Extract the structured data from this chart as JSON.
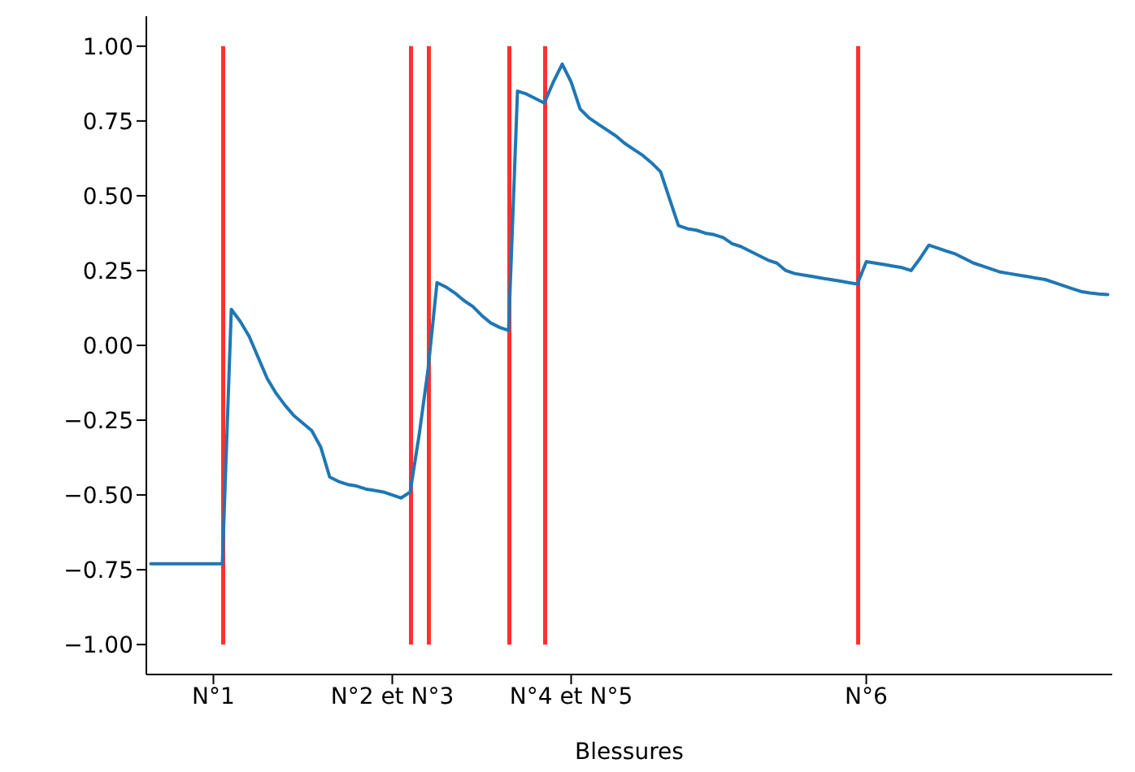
{
  "chart_data": {
    "type": "line",
    "xlabel": "Blessures",
    "categories": [
      null,
      null,
      null,
      null,
      null,
      null,
      null,
      "N°1",
      null,
      null,
      null,
      null,
      null,
      null,
      null,
      null,
      null,
      null,
      null,
      null,
      null,
      null,
      null,
      null,
      null,
      null,
      null,
      "N°2 et N°3",
      null,
      null,
      null,
      null,
      null,
      null,
      null,
      null,
      null,
      null,
      null,
      null,
      null,
      null,
      null,
      null,
      null,
      null,
      null,
      "N°4 et N°5",
      null,
      null,
      null,
      null,
      null,
      null,
      null,
      null,
      null,
      null,
      null,
      null,
      null,
      null,
      null,
      null,
      null,
      null,
      null,
      null,
      null,
      null,
      null,
      null,
      null,
      null,
      null,
      null,
      null,
      null,
      null,
      null,
      "N°6",
      null,
      null,
      null,
      null,
      null,
      null,
      null,
      null,
      null,
      null,
      null,
      null,
      null,
      null,
      null,
      null,
      null,
      null,
      null,
      null,
      null,
      null,
      null,
      null,
      null,
      null,
      null
    ],
    "series": [
      {
        "color": "#1f77b4",
        "values": [
          -0.73,
          -0.73,
          -0.73,
          -0.73,
          -0.73,
          -0.73,
          -0.73,
          -0.73,
          -0.73,
          0.12,
          0.08,
          0.03,
          -0.04,
          -0.11,
          -0.16,
          -0.2,
          -0.235,
          -0.26,
          -0.285,
          -0.34,
          -0.44,
          -0.455,
          -0.465,
          -0.47,
          -0.48,
          -0.485,
          -0.49,
          -0.5,
          -0.51,
          -0.49,
          -0.3,
          -0.08,
          0.21,
          0.195,
          0.175,
          0.15,
          0.13,
          0.1,
          0.075,
          0.06,
          0.05,
          0.85,
          0.84,
          0.825,
          0.81,
          0.88,
          0.94,
          0.88,
          0.79,
          0.76,
          0.74,
          0.72,
          0.7,
          0.675,
          0.655,
          0.635,
          0.61,
          0.58,
          0.49,
          0.4,
          0.39,
          0.385,
          0.375,
          0.37,
          0.36,
          0.34,
          0.33,
          0.315,
          0.3,
          0.285,
          0.275,
          0.25,
          0.24,
          0.235,
          0.23,
          0.225,
          0.22,
          0.215,
          0.21,
          0.205,
          0.28,
          0.275,
          0.27,
          0.265,
          0.26,
          0.25,
          0.29,
          0.335,
          0.325,
          0.315,
          0.305,
          0.29,
          0.275,
          0.265,
          0.255,
          0.245,
          0.24,
          0.235,
          0.23,
          0.225,
          0.22,
          0.21,
          0.2,
          0.19,
          0.18,
          0.175,
          0.172,
          0.17
        ]
      },
      {
        "type": "bar",
        "color": "#ff3030",
        "values": [
          null,
          null,
          null,
          null,
          null,
          null,
          null,
          null,
          2,
          null,
          null,
          null,
          null,
          null,
          null,
          null,
          null,
          null,
          null,
          null,
          null,
          null,
          null,
          null,
          null,
          null,
          null,
          null,
          null,
          2,
          null,
          2,
          null,
          null,
          null,
          null,
          null,
          null,
          null,
          null,
          2,
          null,
          null,
          null,
          2,
          null,
          null,
          null,
          null,
          null,
          null,
          null,
          null,
          null,
          null,
          null,
          null,
          null,
          null,
          null,
          null,
          null,
          null,
          null,
          null,
          null,
          null,
          null,
          null,
          null,
          null,
          null,
          null,
          null,
          null,
          null,
          null,
          null,
          null,
          2,
          null,
          null,
          null,
          null,
          null,
          null,
          null,
          null,
          null,
          null,
          null,
          null,
          null,
          null,
          null,
          null,
          null,
          null,
          null,
          null,
          null,
          null,
          null,
          null,
          null,
          null,
          null,
          null
        ],
        "base": [
          null,
          null,
          null,
          null,
          null,
          null,
          null,
          null,
          -1,
          null,
          null,
          null,
          null,
          null,
          null,
          null,
          null,
          null,
          null,
          null,
          null,
          null,
          null,
          null,
          null,
          null,
          null,
          null,
          null,
          -1,
          null,
          -1,
          null,
          null,
          null,
          null,
          null,
          null,
          null,
          null,
          -1,
          null,
          null,
          null,
          -1,
          null,
          null,
          null,
          null,
          null,
          null,
          null,
          null,
          null,
          null,
          null,
          null,
          null,
          null,
          null,
          null,
          null,
          null,
          null,
          null,
          null,
          null,
          null,
          null,
          null,
          null,
          null,
          null,
          null,
          null,
          null,
          null,
          null,
          null,
          -1,
          null,
          null,
          null,
          null,
          null,
          null,
          null,
          null,
          null,
          null,
          null,
          null,
          null,
          null,
          null,
          null,
          null,
          null,
          null,
          null,
          null,
          null,
          null,
          null,
          null,
          null,
          null,
          null
        ]
      }
    ],
    "ylim": [
      -1.1,
      1.1
    ],
    "yticks": [
      {
        "value": -1,
        "label": "−1.00"
      },
      {
        "value": -0.75,
        "label": "−0.75"
      },
      {
        "value": -0.5,
        "label": "−0.50"
      },
      {
        "value": -0.25,
        "label": "−0.25"
      },
      {
        "value": 0,
        "label": "0.00"
      },
      {
        "value": 0.25,
        "label": "0.25"
      },
      {
        "value": 0.5,
        "label": "0.50"
      },
      {
        "value": 0.75,
        "label": "0.75"
      },
      {
        "value": 1,
        "label": "1.00"
      }
    ],
    "grid": false,
    "legend": false,
    "marker": "none",
    "line_style": "solid"
  }
}
